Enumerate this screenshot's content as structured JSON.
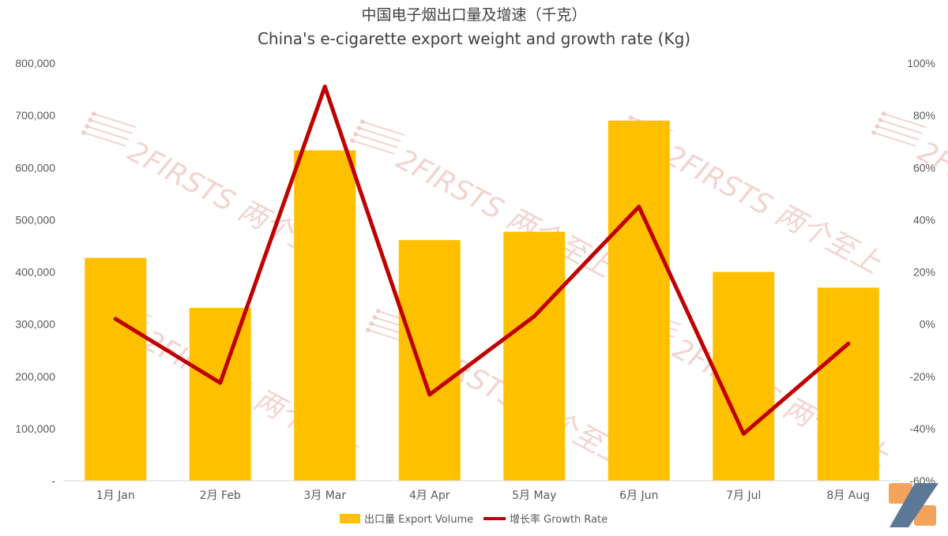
{
  "chart_data": {
    "type": "bar",
    "title": "中国电子烟出口量及增速（千克）",
    "subtitle": "China's e-cigarette export weight and growth rate (Kg)",
    "categories": [
      "1月 Jan",
      "2月 Feb",
      "3月 Mar",
      "4月 Apr",
      "5月 May",
      "6月 Jun",
      "7月 Jul",
      "8月 Aug"
    ],
    "series": [
      {
        "name": "出口量 Export Volume",
        "type": "bar",
        "axis": "left",
        "color": "#ffc000",
        "values": [
          427000,
          331000,
          633000,
          461000,
          477000,
          690000,
          400000,
          370000
        ]
      },
      {
        "name": "增长率 Growth Rate",
        "type": "line",
        "axis": "right",
        "color": "#c00000",
        "values": [
          2,
          -22.5,
          91,
          -27,
          3,
          45,
          -42,
          -7.5
        ]
      }
    ],
    "ylim": [
      0,
      800000
    ],
    "yticks": [
      0,
      100000,
      200000,
      300000,
      400000,
      500000,
      600000,
      700000,
      800000
    ],
    "ytick_labels": [
      "-",
      "100,000",
      "200,000",
      "300,000",
      "400,000",
      "500,000",
      "600,000",
      "700,000",
      "800,000"
    ],
    "y2lim": [
      -60,
      100
    ],
    "y2ticks": [
      -60,
      -40,
      -20,
      0,
      20,
      40,
      60,
      80,
      100
    ],
    "y2tick_labels": [
      "-60%",
      "-40%",
      "-20%",
      "0%",
      "20%",
      "40%",
      "60%",
      "80%",
      "100%"
    ],
    "grid": false,
    "legend_position": "bottom"
  },
  "watermark": {
    "text": "2FIRSTS 两个至上",
    "color": "#e7b3ae"
  },
  "logo": {
    "name": "2firsts-logo",
    "colors": [
      "#f3a35a",
      "#5b7897"
    ]
  }
}
